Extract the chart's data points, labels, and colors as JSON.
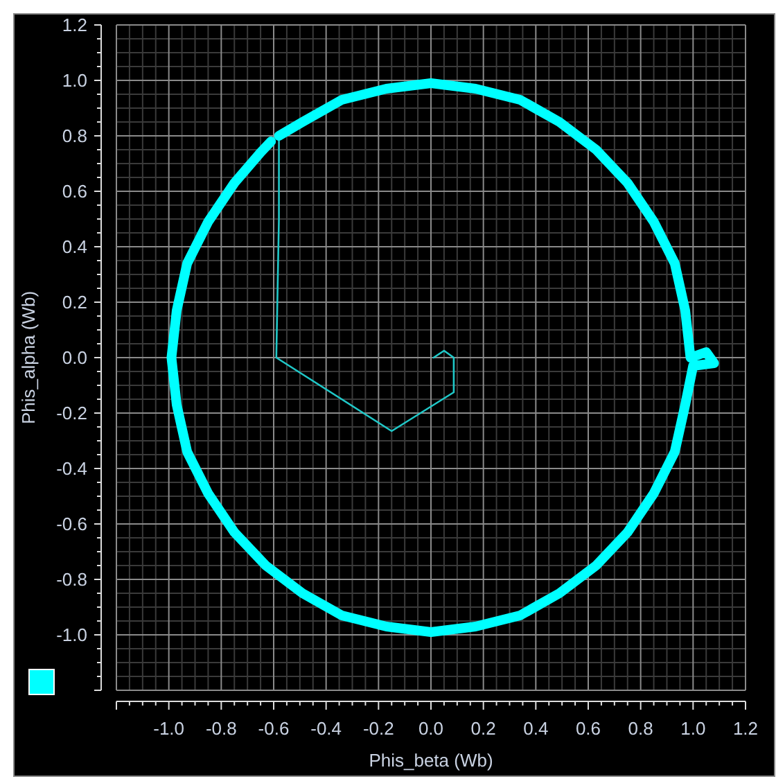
{
  "chart_data": {
    "type": "line",
    "xlabel": "Phis_beta (Wb)",
    "ylabel": "Phis_alpha (Wb)",
    "xlim": [
      -1.2,
      1.2
    ],
    "ylim": [
      -1.2,
      1.2
    ],
    "xticks": [
      {
        "value": -1.2,
        "label": null
      },
      {
        "value": -1.0,
        "label": "-1.0"
      },
      -0.8,
      -0.6,
      -0.4,
      -0.2,
      {
        "value": 0.0,
        "label": "0.0"
      },
      0.2,
      0.4,
      0.6,
      0.8,
      {
        "value": 1.0,
        "label": "1.0"
      },
      1.2
    ],
    "yticks": [
      {
        "value": -1.2,
        "label": null
      },
      {
        "value": -1.0,
        "label": "-1.0"
      },
      -0.8,
      -0.6,
      -0.4,
      -0.2,
      {
        "value": 0.0,
        "label": "0.0"
      },
      0.2,
      0.4,
      0.6,
      0.8,
      {
        "value": 1.0,
        "label": "1.0"
      },
      1.2
    ],
    "grid": true,
    "marker": "none",
    "line_style": "solid",
    "series": [
      {
        "color": "#20c8c8",
        "x": [
          0.01,
          0.05,
          0.087,
          0.087,
          -0.15,
          -0.59,
          -0.58,
          -0.58
        ],
        "values": [
          0.0,
          0.025,
          0.0,
          -0.125,
          -0.265,
          0.0,
          0.5,
          0.8
        ]
      },
      {
        "color": "#00ffff",
        "x": [
          -0.58,
          -0.49,
          -0.34,
          -0.17,
          0,
          0.17,
          0.34,
          0.49,
          0.63,
          0.75,
          0.85,
          0.93,
          0.97,
          0.99,
          1.05,
          1.08,
          1.0,
          0.97,
          0.93,
          0.85,
          0.75,
          0.63,
          0.49,
          0.34,
          0.17,
          0,
          -0.17,
          -0.34,
          -0.49,
          -0.63,
          -0.75,
          -0.85,
          -0.93,
          -0.97,
          -0.99,
          -0.97,
          -0.93,
          -0.85,
          -0.75,
          -0.65,
          -0.61
        ],
        "values": [
          0.8,
          0.85,
          0.93,
          0.97,
          0.99,
          0.97,
          0.93,
          0.85,
          0.75,
          0.63,
          0.49,
          0.34,
          0.17,
          0.0,
          0.02,
          -0.02,
          -0.03,
          -0.17,
          -0.34,
          -0.49,
          -0.63,
          -0.75,
          -0.85,
          -0.93,
          -0.97,
          -0.99,
          -0.97,
          -0.93,
          -0.85,
          -0.75,
          -0.63,
          -0.49,
          -0.34,
          -0.17,
          0.0,
          0.17,
          0.34,
          0.49,
          0.63,
          0.74,
          0.78
        ]
      }
    ]
  }
}
